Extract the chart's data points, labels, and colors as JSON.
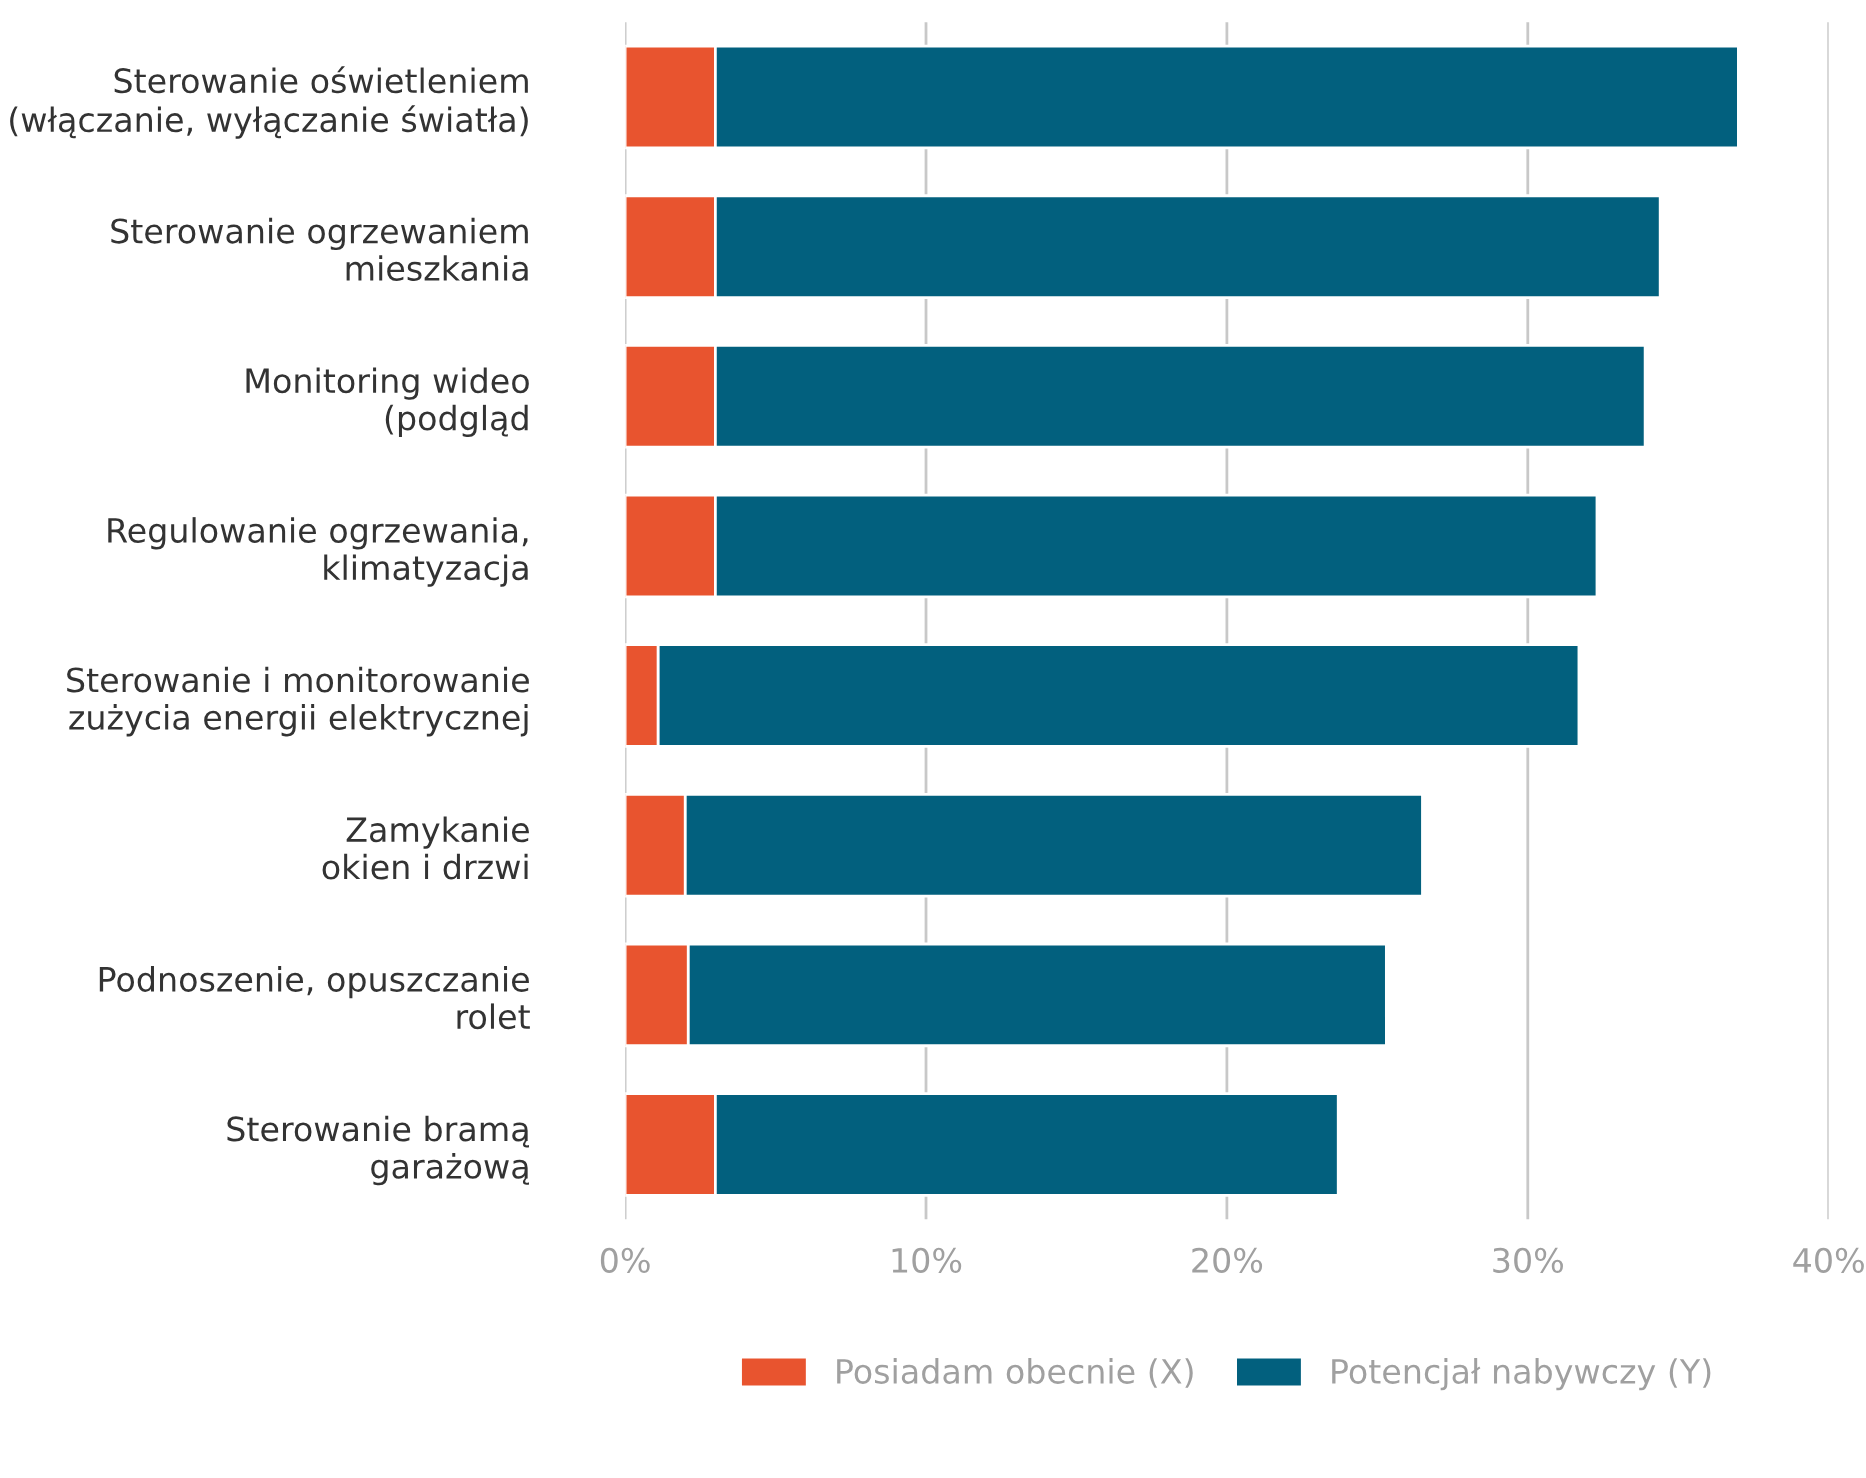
{
  "chart_data": {
    "type": "bar",
    "orientation": "horizontal",
    "stacked": true,
    "categories": [
      "Sterowanie oświetleniem\n(włączanie, wyłączanie światła)",
      "Sterowanie ogrzewaniem\nmieszkania",
      "Monitoring wideo\n(podgląd",
      "Regulowanie ogrzewania,\nklimatyzacja",
      "Sterowanie i monitorowanie\nzużycia energii elektrycznej",
      "Zamykanie\nokien i drzwi",
      "Podnoszenie, opuszczanie\nrolet",
      "Sterowanie bramą\ngarażową"
    ],
    "series": [
      {
        "name": "Posiadam obecnie (X)",
        "color": "#e8542f",
        "values": [
          3,
          3,
          3,
          3,
          1.1,
          2,
          2.1,
          3
        ]
      },
      {
        "name": "Potencjał nabywczy (Y)",
        "color": "#02607e",
        "values": [
          34,
          31.4,
          30.9,
          29.3,
          30.6,
          24.5,
          23.2,
          20.7
        ]
      }
    ],
    "xlim": [
      0,
      40
    ],
    "xticks": [
      {
        "value": 0,
        "label": "0%"
      },
      {
        "value": 10,
        "label": "10%"
      },
      {
        "value": 20,
        "label": "20%"
      },
      {
        "value": 30,
        "label": "30%"
      },
      {
        "value": 40,
        "label": "40%"
      }
    ],
    "grid": "x",
    "legend": "bottom"
  }
}
